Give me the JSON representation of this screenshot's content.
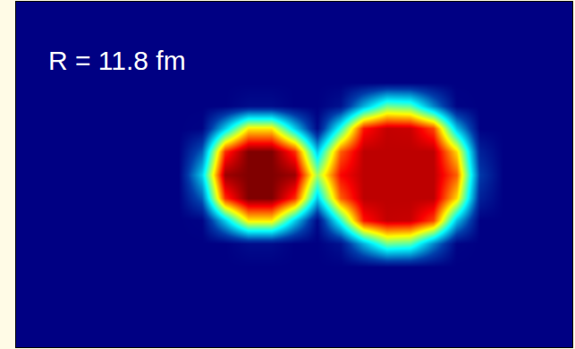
{
  "chart_data": {
    "type": "heatmap",
    "x": [
      -10,
      -8,
      -6,
      -4,
      -2,
      0,
      2,
      4,
      6,
      8,
      10,
      12,
      14,
      16,
      18
    ],
    "y": [
      -8,
      -6,
      -4,
      -2,
      0,
      2,
      4,
      6,
      8
    ],
    "z": [
      [
        0,
        0,
        0,
        0,
        0,
        0,
        0,
        0,
        0,
        0,
        0,
        0,
        0,
        0,
        0
      ],
      [
        0,
        0,
        0,
        0.004,
        0.004,
        0,
        0,
        0.006,
        0.044,
        0.077,
        0.073,
        0.035,
        0.001,
        0,
        0
      ],
      [
        0,
        0.001,
        0.05,
        0.103,
        0.103,
        0.05,
        0.003,
        0.065,
        0.137,
        0.149,
        0.148,
        0.129,
        0.047,
        0,
        0
      ],
      [
        0,
        0.027,
        0.133,
        0.16,
        0.16,
        0.133,
        0.049,
        0.125,
        0.15,
        0.15,
        0.15,
        0.15,
        0.106,
        0.011,
        0
      ],
      [
        0,
        0.05,
        0.155,
        0.16,
        0.16,
        0.155,
        0.085,
        0.139,
        0.15,
        0.15,
        0.15,
        0.15,
        0.125,
        0.019,
        0
      ],
      [
        0,
        0.027,
        0.133,
        0.16,
        0.16,
        0.133,
        0.049,
        0.125,
        0.15,
        0.15,
        0.15,
        0.15,
        0.106,
        0.011,
        0
      ],
      [
        0,
        0.001,
        0.05,
        0.103,
        0.103,
        0.05,
        0.003,
        0.065,
        0.137,
        0.149,
        0.148,
        0.129,
        0.047,
        0,
        0
      ],
      [
        0,
        0,
        0,
        0.004,
        0.004,
        0,
        0,
        0.006,
        0.044,
        0.077,
        0.073,
        0.035,
        0.001,
        0,
        0
      ],
      [
        0,
        0,
        0,
        0,
        0,
        0,
        0,
        0,
        0,
        0,
        0,
        0,
        0,
        0,
        0
      ]
    ],
    "zlim": [
      0,
      0.16
    ],
    "xlim": [
      -24,
      24
    ],
    "ylim": [
      -15,
      15
    ],
    "tick_labels": false,
    "grid": false,
    "annotations": [
      "R = 11.8 fm"
    ]
  }
}
